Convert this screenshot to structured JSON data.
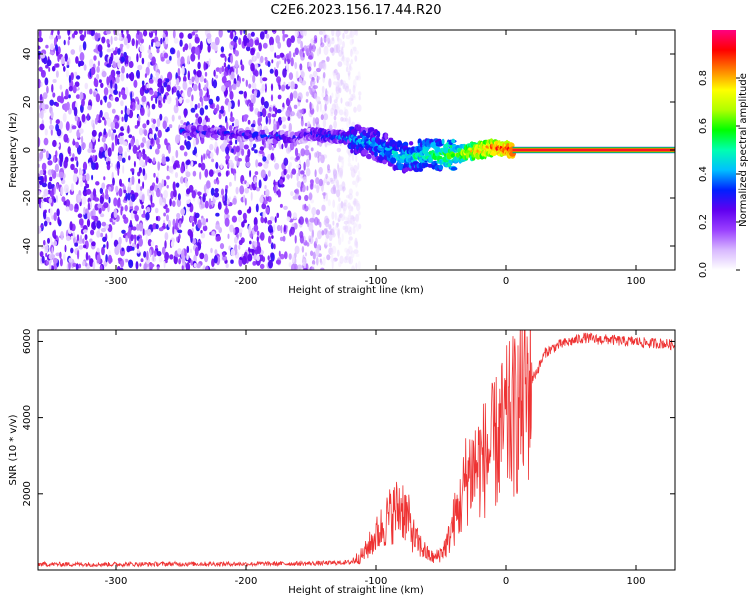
{
  "title": "C2E6.2023.156.17.44.R20",
  "chart_data": [
    {
      "type": "heatmap",
      "xlabel": "Height of straight line (km)",
      "ylabel": "Frequency (Hz)",
      "xlim": [
        -360,
        130
      ],
      "ylim": [
        -50,
        50
      ],
      "xticks": [
        -300,
        -200,
        -100,
        0,
        100
      ],
      "yticks": [
        -40,
        -20,
        0,
        20,
        40
      ],
      "colorbar": {
        "label": "Normalized spectral amplitude",
        "range": [
          0,
          1
        ],
        "ticks": [
          0.0,
          0.2,
          0.4,
          0.6,
          0.8
        ],
        "colors": [
          "#ffffff",
          "#d8b8ff",
          "#9a40ff",
          "#6000f0",
          "#0020ff",
          "#00c0ff",
          "#00ffb0",
          "#00ff00",
          "#b0ff00",
          "#ffff00",
          "#ff8000",
          "#ff0000",
          "#ff0080"
        ]
      },
      "noise_region": {
        "x_range": [
          -360,
          -120
        ],
        "freq_range": [
          -50,
          50
        ],
        "amplitude_range": [
          0.02,
          0.3
        ]
      },
      "ridge": [
        {
          "x": -250,
          "freq": 8,
          "amplitude": 0.3
        },
        {
          "x": -160,
          "freq": 5,
          "amplitude": 0.3
        },
        {
          "x": -150,
          "freq": 7,
          "amplitude": 0.3
        },
        {
          "x": -140,
          "freq": 6,
          "amplitude": 0.35
        },
        {
          "x": -120,
          "freq": 5,
          "amplitude": 0.4
        },
        {
          "x": -100,
          "freq": 2,
          "amplitude": 0.4
        },
        {
          "x": -80,
          "freq": -3,
          "amplitude": 0.45
        },
        {
          "x": -60,
          "freq": -2,
          "amplitude": 0.5
        },
        {
          "x": -40,
          "freq": -2,
          "amplitude": 0.6
        },
        {
          "x": -30,
          "freq": -1,
          "amplitude": 0.7
        },
        {
          "x": -20,
          "freq": 0,
          "amplitude": 0.8
        },
        {
          "x": -10,
          "freq": 1,
          "amplitude": 0.85
        },
        {
          "x": 5,
          "freq": 0,
          "amplitude": 0.9
        },
        {
          "x": 130,
          "freq": 0,
          "amplitude": 0.95
        }
      ]
    },
    {
      "type": "line",
      "xlabel": "Height of straight line (km)",
      "ylabel": "SNR (10 * v/v)",
      "xlim": [
        -360,
        130
      ],
      "ylim": [
        0,
        6300
      ],
      "xticks": [
        -300,
        -200,
        -100,
        0,
        100
      ],
      "yticks": [
        2000,
        4000,
        6000
      ],
      "color": "#ee3333",
      "series": [
        {
          "x": [
            -360,
            -300,
            -250,
            -200,
            -150,
            -120,
            -110,
            -100,
            -90,
            -80,
            -75,
            -70,
            -60,
            -55,
            -50,
            -45,
            -40,
            -35,
            -30,
            -25,
            -20,
            -15,
            -10,
            -5,
            0,
            5,
            10,
            15,
            20,
            25,
            30,
            40,
            50,
            60,
            70,
            80,
            90,
            100,
            110,
            120,
            130
          ],
          "y": [
            150,
            150,
            160,
            160,
            170,
            200,
            400,
            900,
            1400,
            1700,
            1300,
            800,
            400,
            300,
            450,
            700,
            1300,
            1700,
            2500,
            2700,
            2800,
            3000,
            3200,
            3500,
            3800,
            4000,
            4200,
            4600,
            5000,
            5300,
            5700,
            5900,
            6000,
            6100,
            6050,
            6050,
            6000,
            6000,
            5950,
            5950,
            5900
          ]
        }
      ]
    }
  ]
}
